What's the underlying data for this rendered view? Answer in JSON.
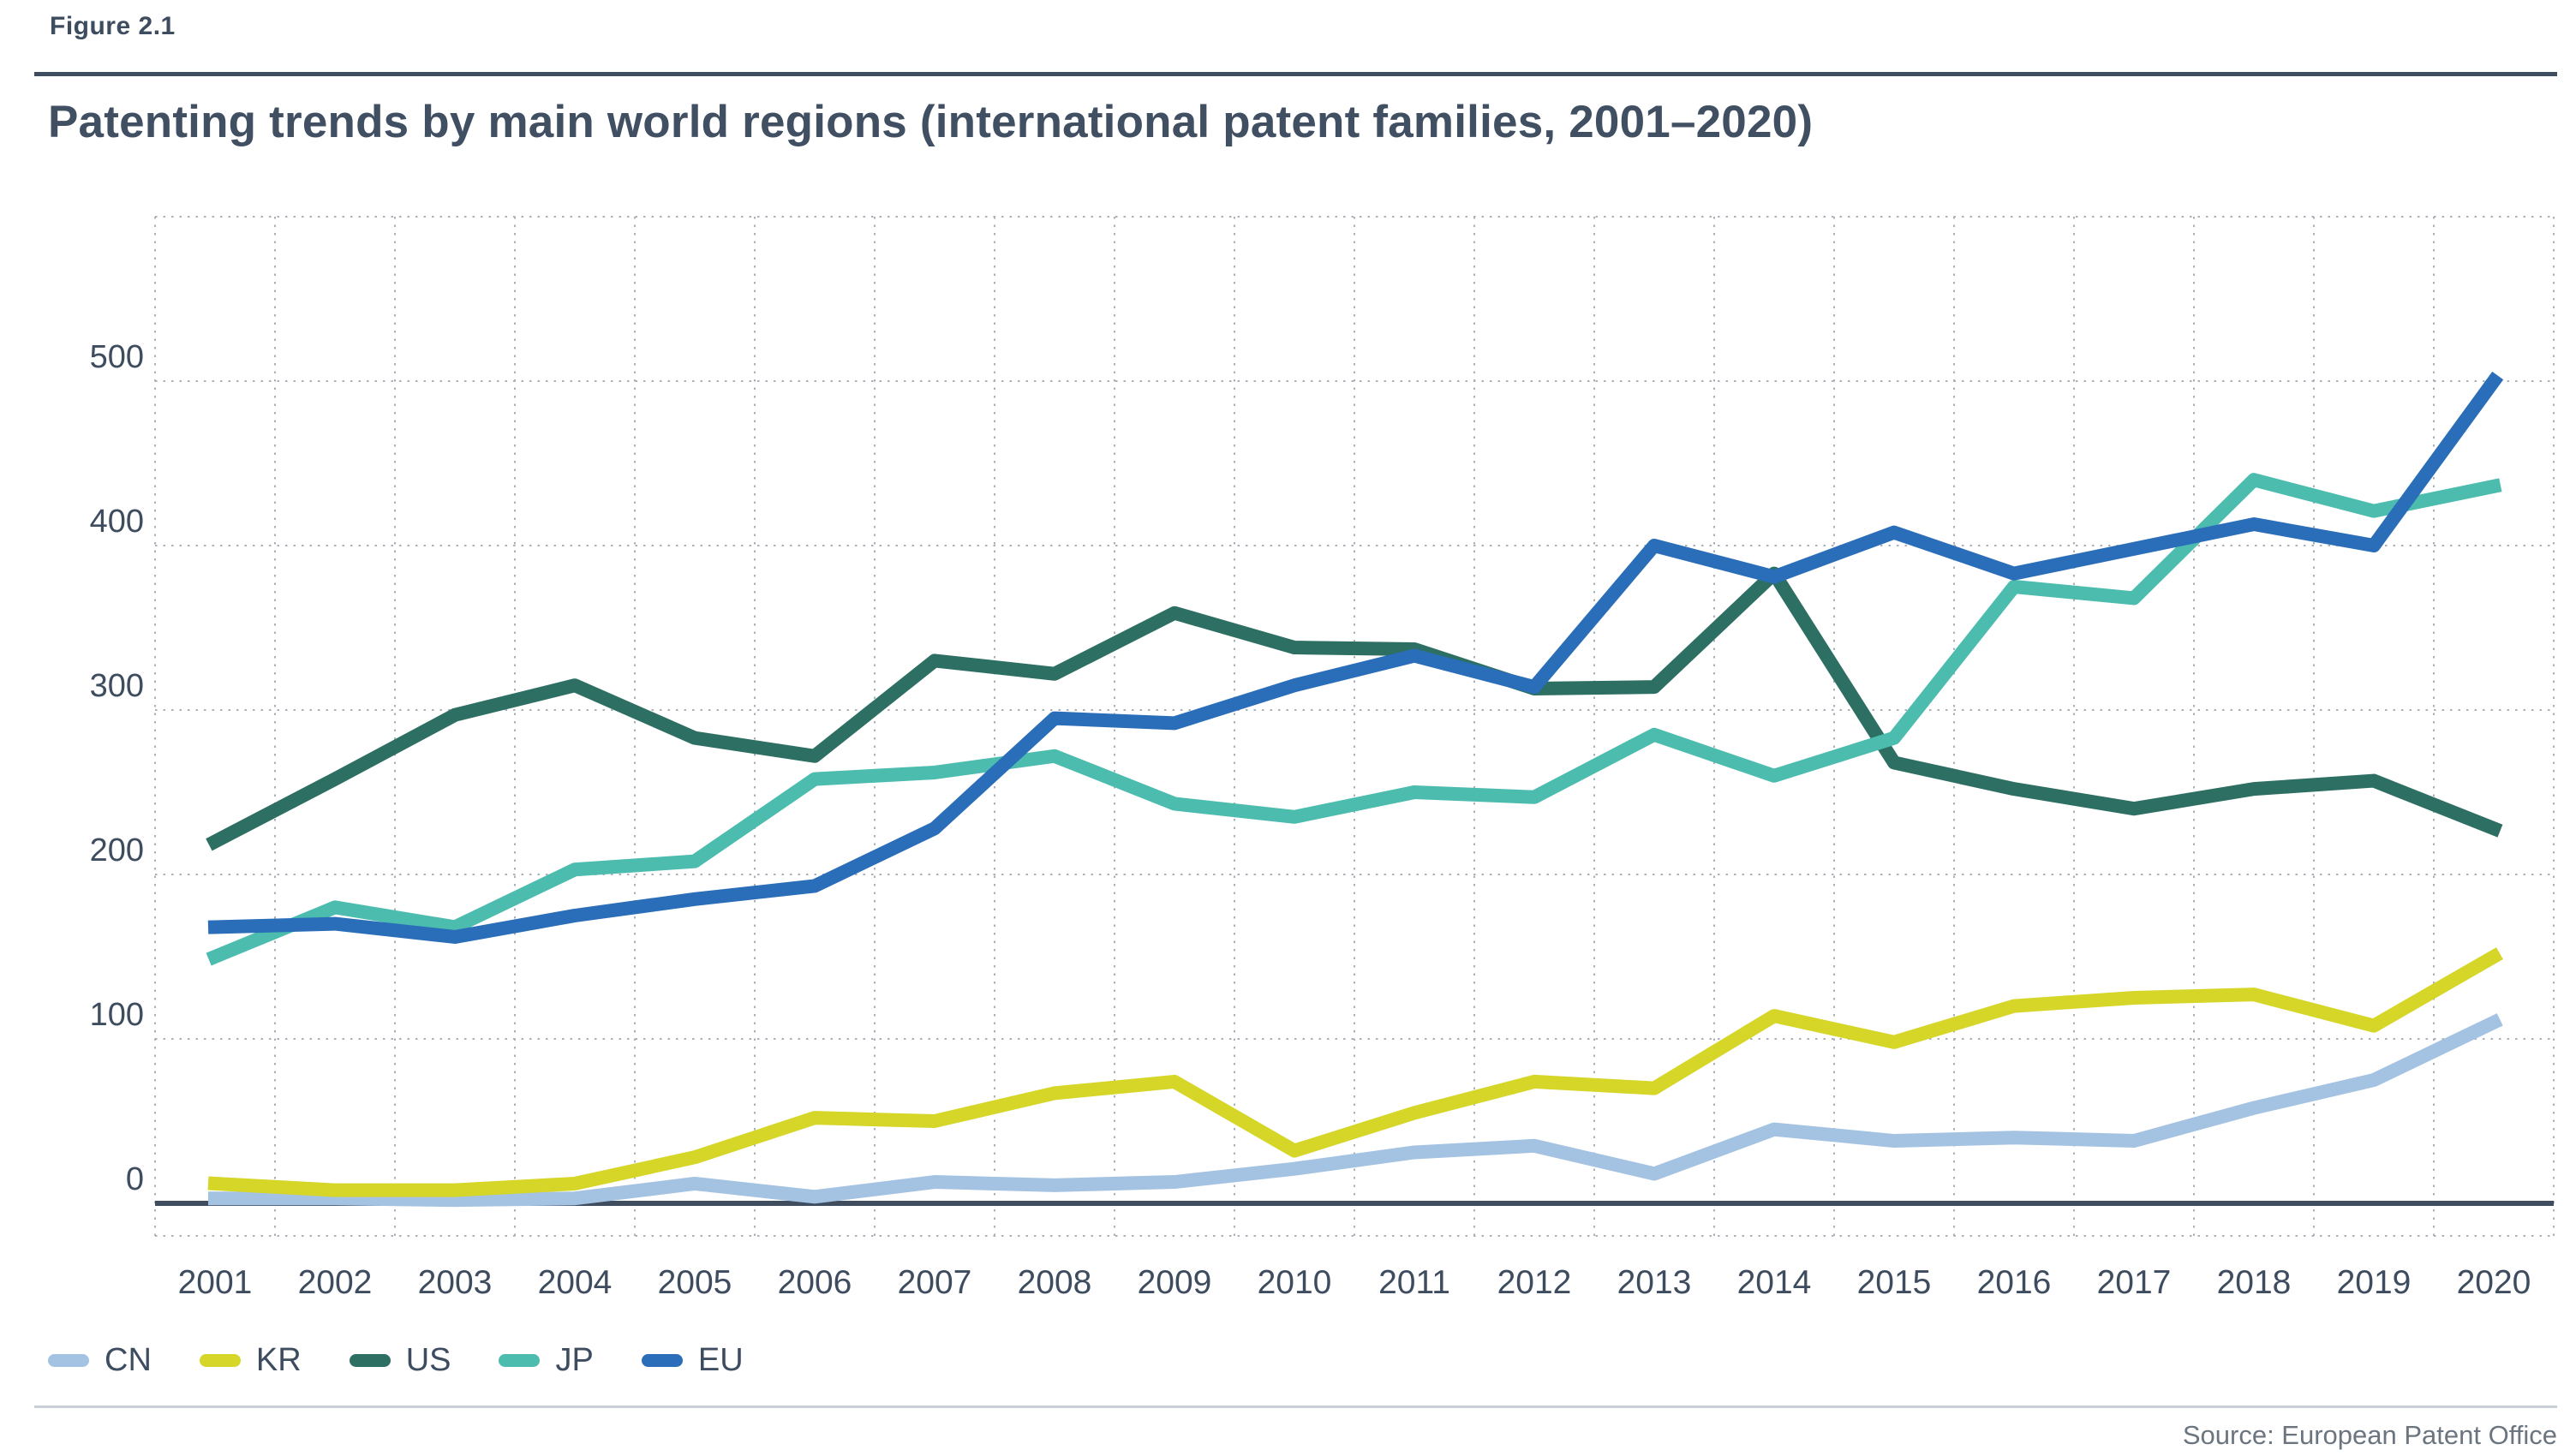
{
  "header": {
    "figure_label": "Figure 2.1",
    "title": "Patenting trends by main world regions (international patent families, 2001–2020)"
  },
  "footer": {
    "source": "Source: European Patent Office"
  },
  "chart_data": {
    "type": "line",
    "title": "Patenting trends by main world regions (international patent families, 2001–2020)",
    "xlabel": "",
    "ylabel": "",
    "x": [
      2001,
      2002,
      2003,
      2004,
      2005,
      2006,
      2007,
      2008,
      2009,
      2010,
      2011,
      2012,
      2013,
      2014,
      2015,
      2016,
      2017,
      2018,
      2019,
      2020
    ],
    "series": [
      {
        "name": "CN",
        "color": "#a4c2e2",
        "values": [
          3,
          3,
          2,
          3,
          12,
          4,
          13,
          11,
          13,
          21,
          31,
          35,
          18,
          45,
          38,
          40,
          38,
          58,
          75,
          110
        ]
      },
      {
        "name": "KR",
        "color": "#d5d628",
        "values": [
          12,
          8,
          8,
          12,
          28,
          52,
          50,
          67,
          74,
          32,
          55,
          74,
          70,
          114,
          98,
          120,
          125,
          127,
          108,
          150
        ]
      },
      {
        "name": "US",
        "color": "#2e6f63",
        "values": [
          220,
          258,
          297,
          315,
          283,
          272,
          330,
          322,
          359,
          338,
          337,
          313,
          314,
          383,
          268,
          252,
          240,
          252,
          257,
          228
        ]
      },
      {
        "name": "JP",
        "color": "#4bbcae",
        "values": [
          150,
          180,
          168,
          203,
          208,
          258,
          262,
          272,
          243,
          235,
          250,
          247,
          285,
          260,
          283,
          375,
          368,
          440,
          421,
          436
        ]
      },
      {
        "name": "EU",
        "color": "#2a6db8",
        "values": [
          168,
          170,
          162,
          175,
          185,
          193,
          228,
          295,
          292,
          315,
          333,
          314,
          400,
          381,
          408,
          383,
          398,
          413,
          400,
          500
        ]
      }
    ],
    "ylim": [
      0,
      600
    ],
    "yticks": [
      0,
      100,
      200,
      300,
      400,
      500
    ],
    "grid": "dotted",
    "legend_position": "bottom-left",
    "legend_labels": [
      "CN",
      "KR",
      "US",
      "JP",
      "EU"
    ]
  }
}
